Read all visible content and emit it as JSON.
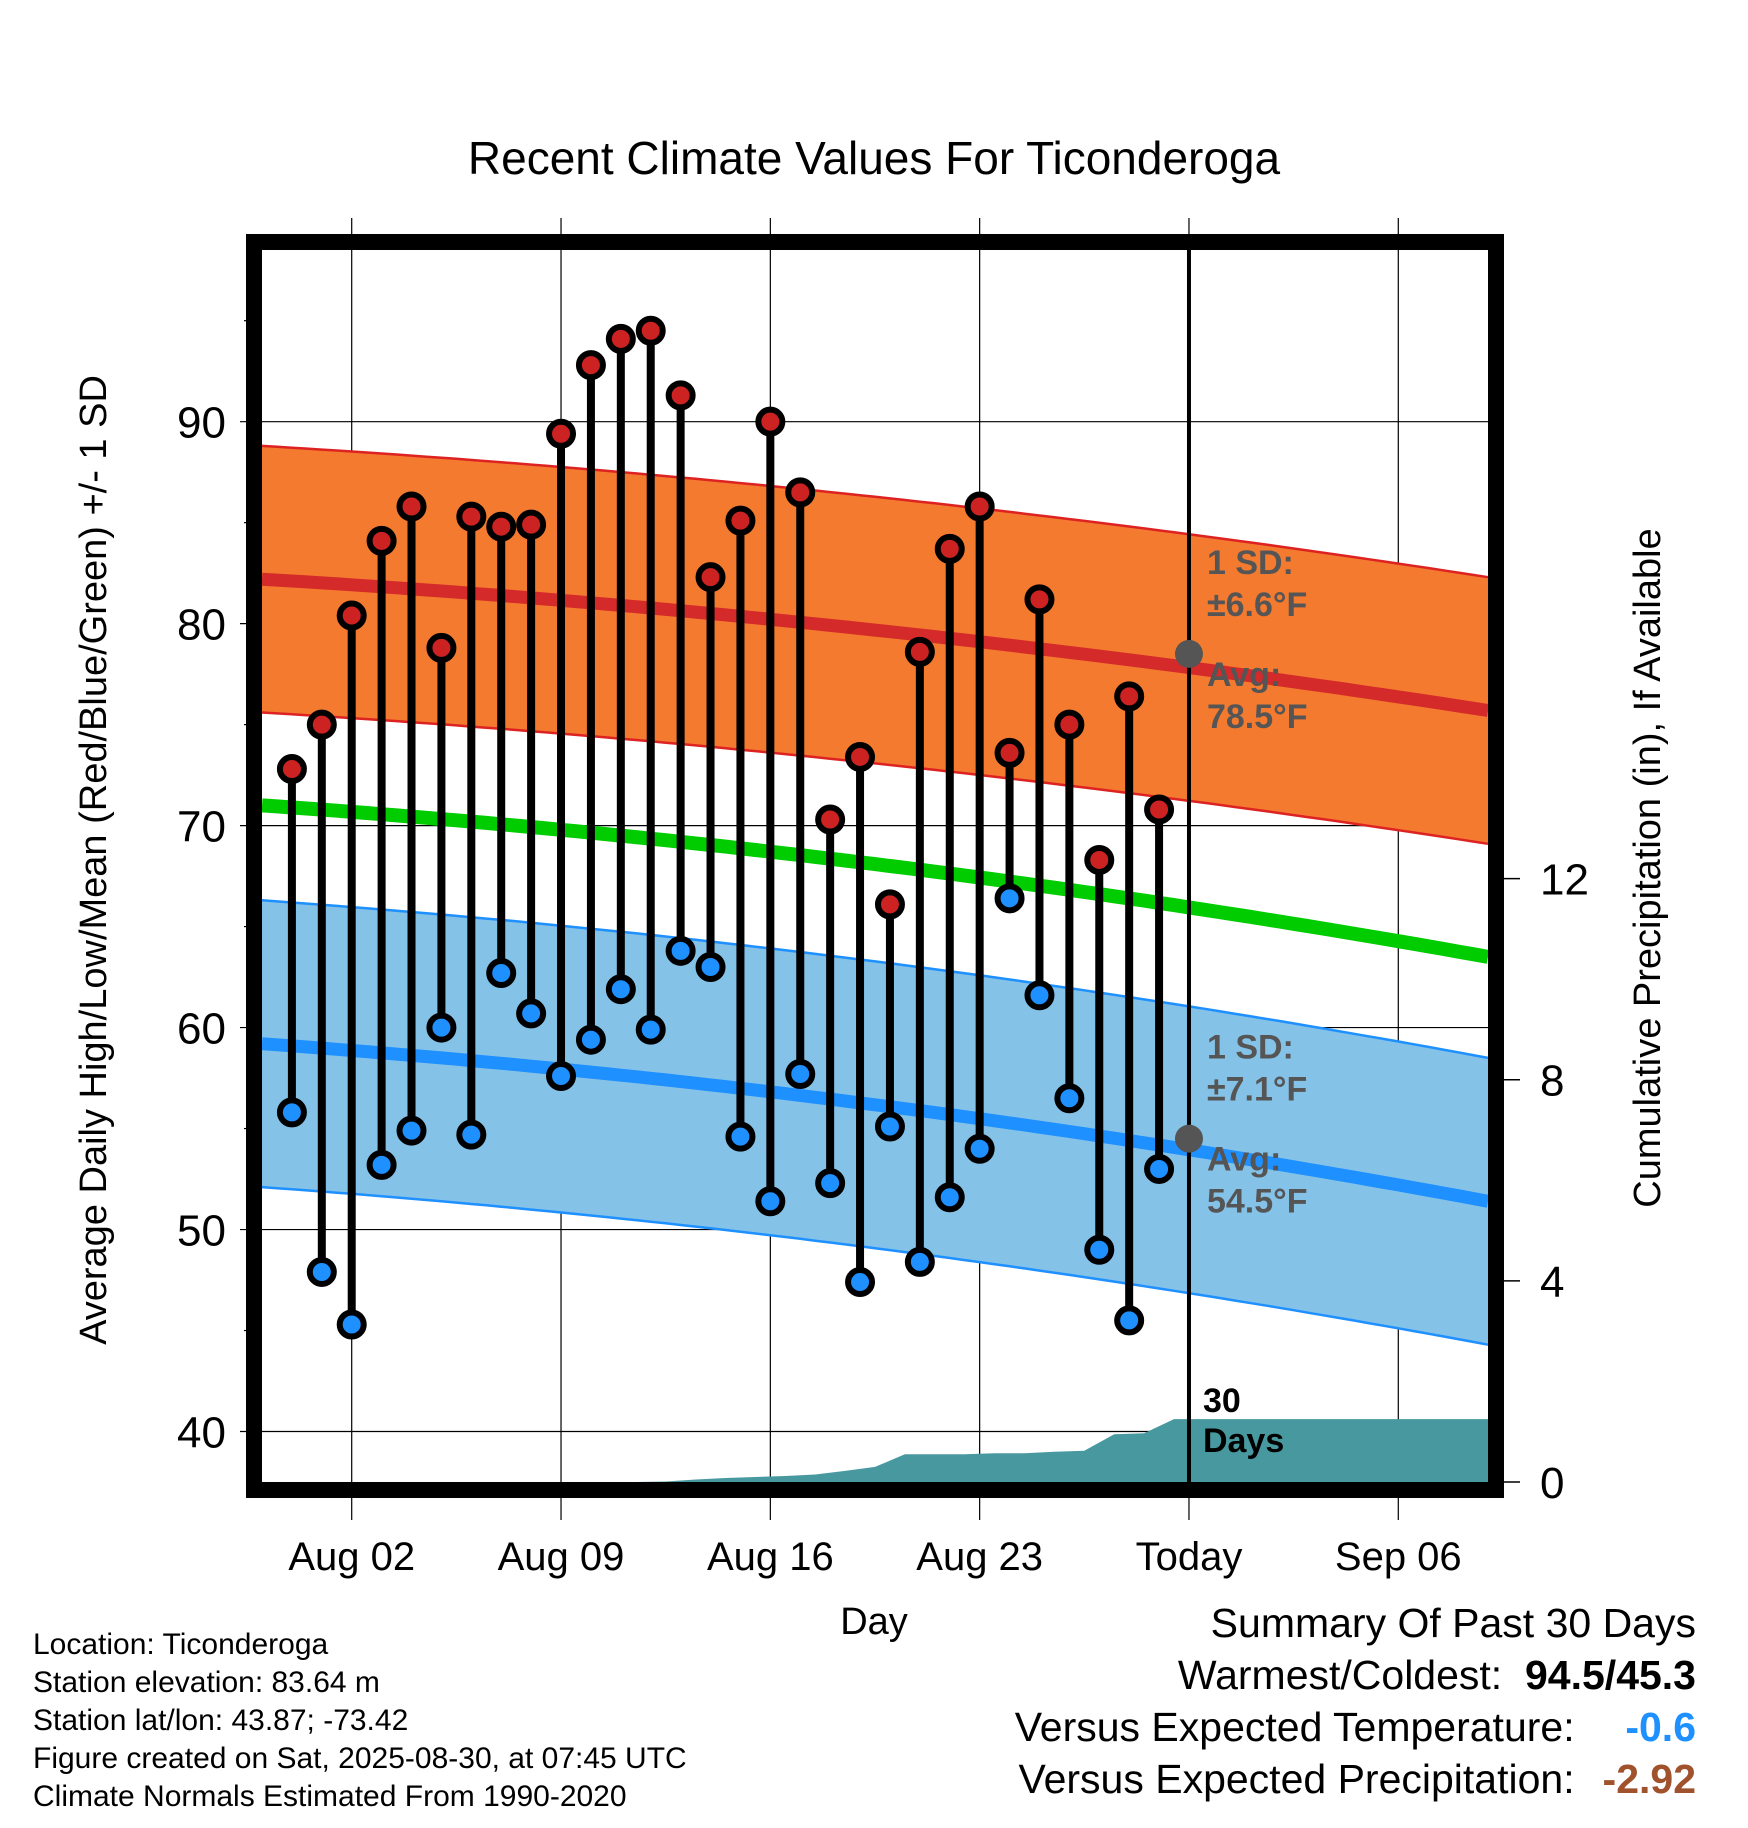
{
  "chart_data": {
    "type": "line",
    "title": "Recent Climate Values For Ticonderoga",
    "xlabel": "Day",
    "ylabel": "Average Daily High/Low/Mean (Red/Blue/Green) +/- 1 SD",
    "ylabel_right": "Cumulative Precipitation (in), If Available",
    "x_tick_labels": [
      "Aug 02",
      "Aug 09",
      "Aug 16",
      "Aug 23",
      "Today",
      "Sep 06"
    ],
    "y_ticks": [
      "40",
      "50",
      "60",
      "70",
      "80",
      "90"
    ],
    "y2_ticks": [
      "0",
      "4",
      "8",
      "12"
    ],
    "ylim": [
      37.5,
      98.5
    ],
    "y2lim": [
      0,
      24.5
    ],
    "xlim": [
      "Jul 30",
      "Sep 09"
    ],
    "grid": true,
    "today_label": "Today",
    "days_label_line1": "30",
    "days_label_line2": "Days",
    "daily_high": [
      72.8,
      75.0,
      80.4,
      84.1,
      85.8,
      78.8,
      85.3,
      84.8,
      84.9,
      89.4,
      92.8,
      94.1,
      94.5,
      91.3,
      82.3,
      85.1,
      90.0,
      86.5,
      70.3,
      73.4,
      66.1,
      78.6,
      83.7,
      85.8,
      73.6,
      81.2,
      75.0,
      68.3,
      76.4,
      70.8
    ],
    "daily_low": [
      55.8,
      47.9,
      45.3,
      53.2,
      54.9,
      60.0,
      54.7,
      62.7,
      60.7,
      57.6,
      59.4,
      61.9,
      59.9,
      63.8,
      63.0,
      54.6,
      51.4,
      57.7,
      52.3,
      47.4,
      55.1,
      48.4,
      51.6,
      54.0,
      66.4,
      61.6,
      56.5,
      49.0,
      45.5,
      53.0
    ],
    "normal_high_avg_start": 82.2,
    "normal_high_avg_end": 75.7,
    "normal_mean_start": 71.0,
    "normal_mean_end": 63.5,
    "normal_low_avg_start": 59.2,
    "normal_low_avg_end": 51.4,
    "high_sd": 6.6,
    "low_sd": 7.1,
    "high_sd_label_line1": "1 SD:",
    "high_sd_label_line2": "±6.6°F",
    "high_avg_label_line1": "Avg:",
    "high_avg_label_line2": "78.5°F",
    "low_sd_label_line1": "1 SD:",
    "low_sd_label_line2": "±7.1°F",
    "low_avg_label_line1": "Avg:",
    "low_avg_label_line2": "54.5°F",
    "today_high_avg": 78.5,
    "today_low_avg": 54.5,
    "cumulative_precip_by_day": [
      0,
      0,
      0,
      0,
      0,
      0,
      0,
      0,
      0,
      0,
      0,
      0,
      0.01,
      0.05,
      0.08,
      0.1,
      0.12,
      0.15,
      0.22,
      0.3,
      0.55,
      0.55,
      0.55,
      0.57,
      0.57,
      0.6,
      0.62,
      0.95,
      0.97,
      1.25
    ],
    "colors": {
      "high_band": "#f47a2f",
      "high_band_edge": "#dd2222",
      "high_avg": "#d42a2a",
      "mean": "#00cc00",
      "low_band": "#85c2e8",
      "low_band_edge": "#1e90ff",
      "low_avg": "#1e90ff",
      "high_marker": "#cc2222",
      "low_marker": "#1e90ff",
      "precip": "#48999f",
      "today_marker": "#555555",
      "sd_label": "#555555"
    }
  },
  "info": {
    "location": "Location: Ticonderoga",
    "elevation": "Station elevation: 83.64 m",
    "latlon": "Station lat/lon: 43.87; -73.42",
    "created": "Figure created on Sat, 2025-08-30, at 07:45 UTC",
    "normals": "Climate Normals Estimated From 1990-2020"
  },
  "summary": {
    "heading": "Summary Of Past 30 Days",
    "warm_cold_label": "Warmest/Coldest:",
    "warm_cold_value": "94.5/45.3",
    "temp_label": "Versus Expected Temperature:",
    "temp_value": "-0.6",
    "temp_color": "#1e90ff",
    "precip_label": "Versus Expected Precipitation:",
    "precip_value": "-2.92",
    "precip_color": "#a0522d"
  }
}
